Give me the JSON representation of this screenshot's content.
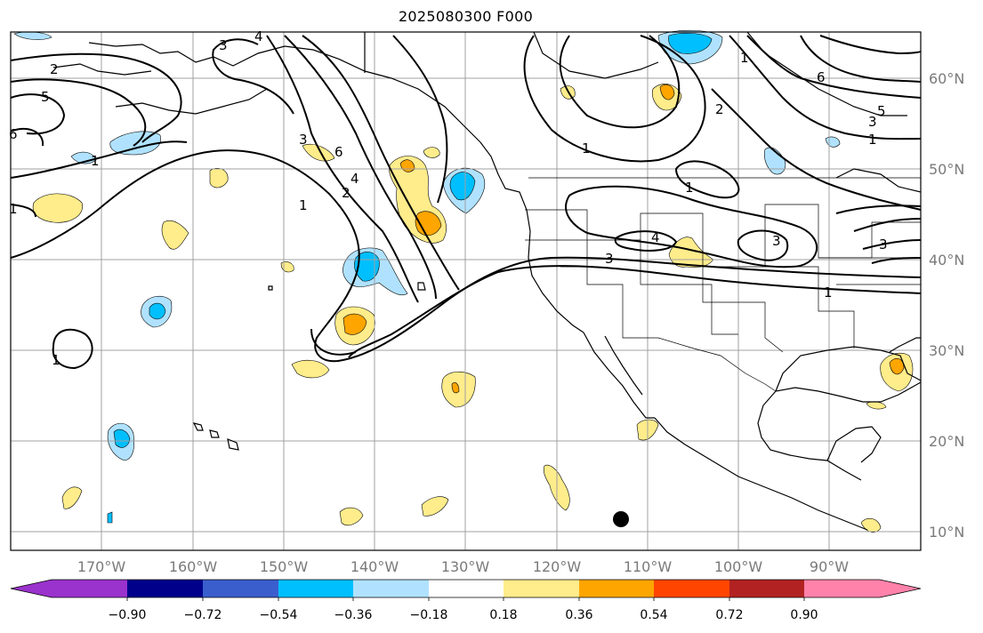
{
  "title": "2025080300 F000",
  "lon_labels": [
    "170°W",
    "160°W",
    "150°W",
    "140°W",
    "130°W",
    "120°W",
    "110°W",
    "100°W",
    "90°W"
  ],
  "lat_labels": [
    "60°N",
    "50°N",
    "40°N",
    "30°N",
    "20°N",
    "10°N"
  ],
  "colorbar": {
    "tick_labels": [
      "−0.90",
      "−0.72",
      "−0.54",
      "−0.36",
      "−0.18",
      "0.18",
      "0.36",
      "0.54",
      "0.72",
      "0.90"
    ],
    "under_color": "#9a32cd",
    "colors": [
      "#00008b",
      "#3a5fcd",
      "#00bfff",
      "#b0e2ff",
      "#ffffff",
      "#ffec8b",
      "#ffa500",
      "#ff4500",
      "#b22222"
    ],
    "over_color": "#ff82ab"
  },
  "contour_labels": [
    "2",
    "5",
    "6",
    "1",
    "3",
    "4",
    "4",
    "6",
    "3",
    "2",
    "1",
    "1",
    "1",
    "4",
    "3",
    "1",
    "1",
    "2",
    "6",
    "5",
    "3",
    "1",
    "1",
    "3",
    "3",
    "1"
  ],
  "fill_colors": {
    "light_yellow": "#ffec8b",
    "orange": "#ffa500",
    "light_blue": "#b0e2ff",
    "blue": "#00bfff"
  }
}
